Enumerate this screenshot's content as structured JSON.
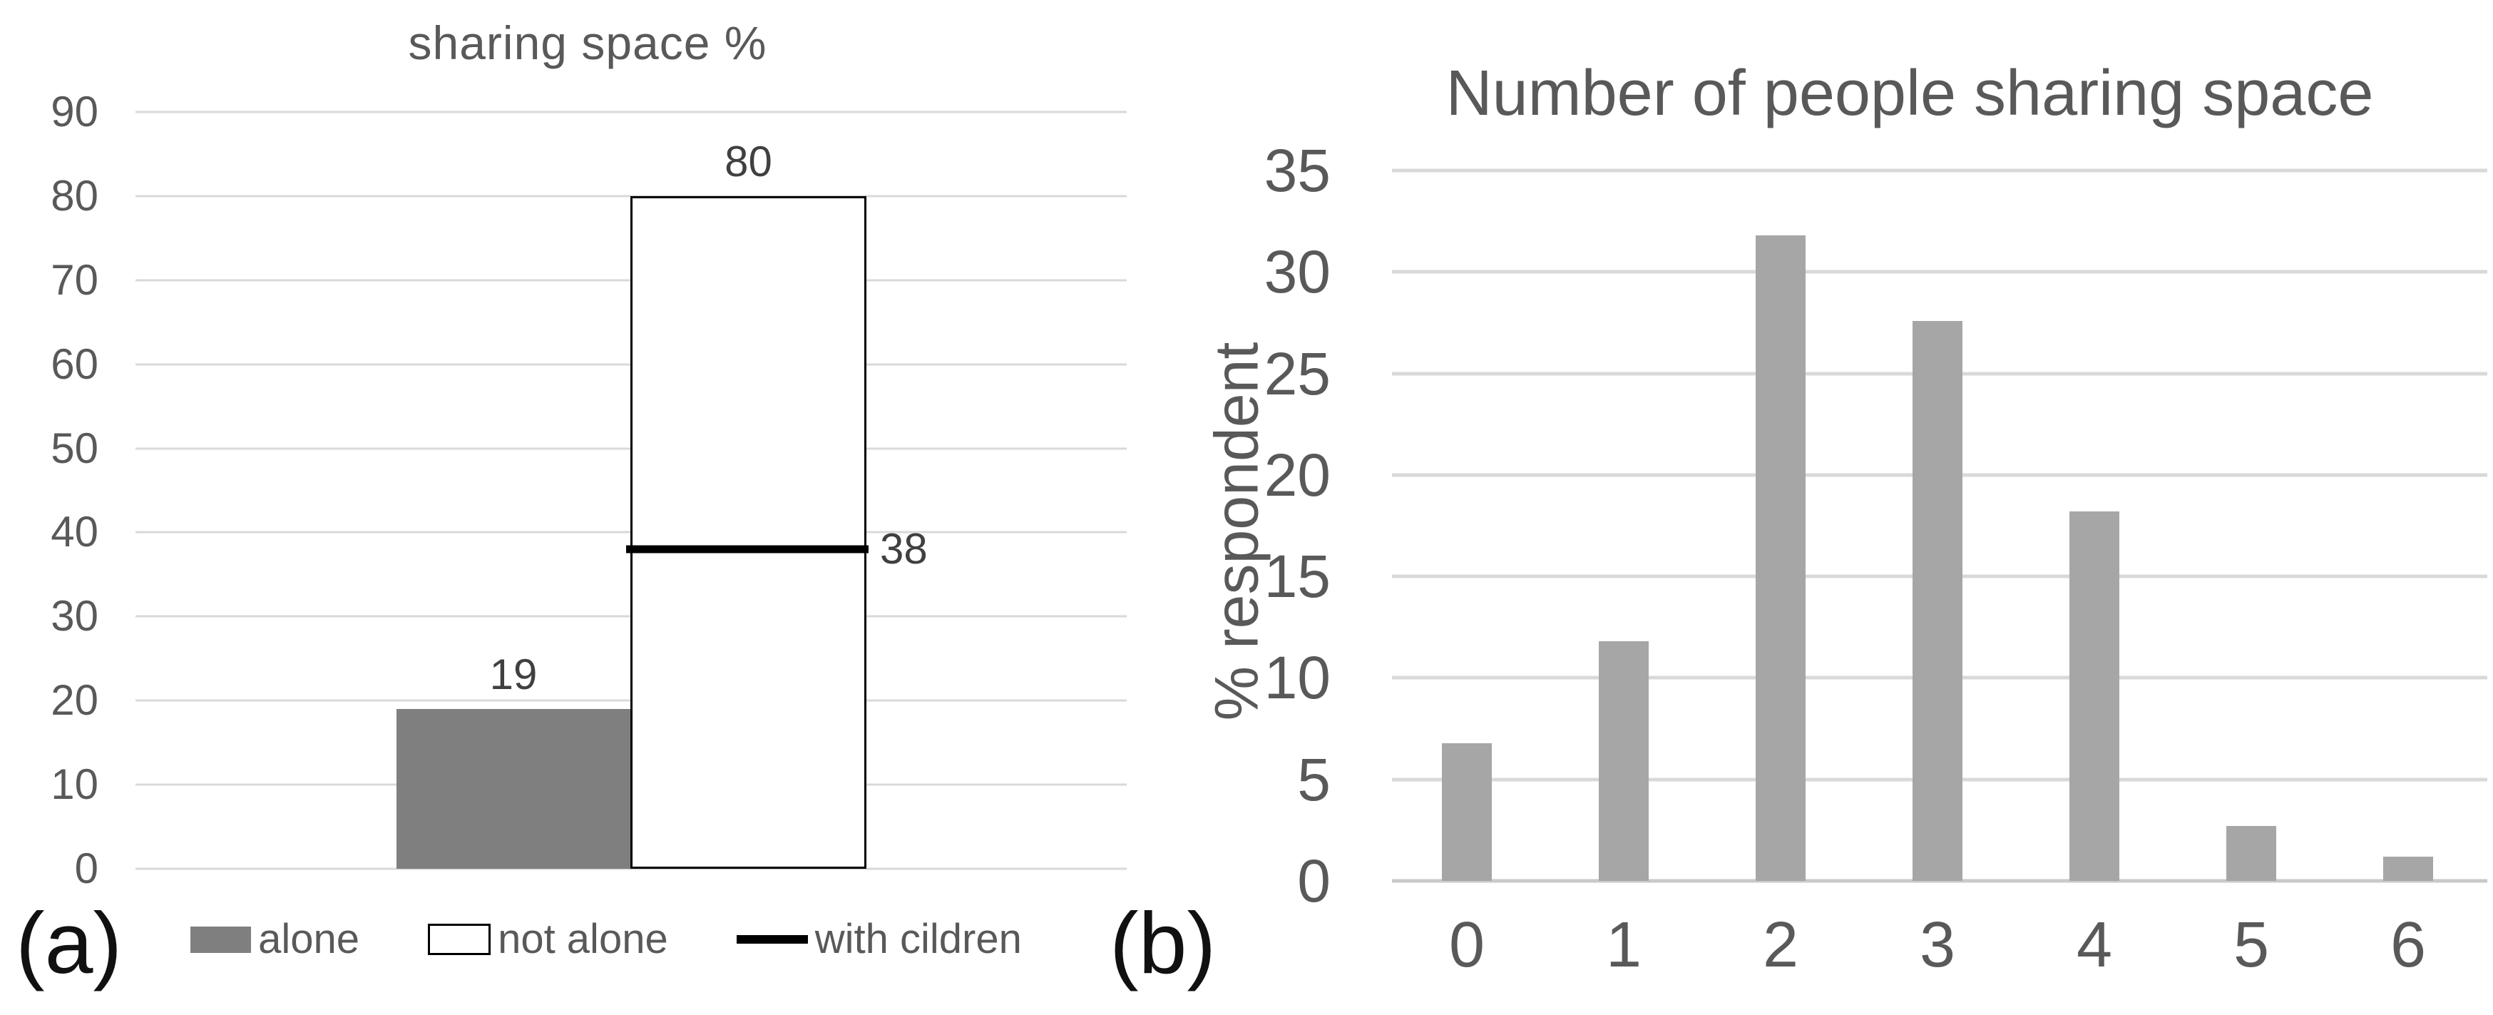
{
  "chart_data": [
    {
      "id": "a",
      "type": "bar",
      "title": "sharing space %",
      "panel_label": "(a)",
      "ylim": [
        0,
        90
      ],
      "yticks": [
        90,
        80,
        70,
        60,
        50,
        40,
        30,
        20,
        10,
        0
      ],
      "grid": true,
      "legend_position": "bottom",
      "series": [
        {
          "name": "alone",
          "mark": "bar",
          "value": 19,
          "data_label": "19"
        },
        {
          "name": "not alone",
          "mark": "bar",
          "value": 80,
          "data_label": "80"
        },
        {
          "name": "with cildren",
          "mark": "line",
          "value": 38,
          "data_label": "38"
        }
      ],
      "legend": [
        {
          "label": "alone",
          "swatch": "gray-fill"
        },
        {
          "label": "not alone",
          "swatch": "white-outline"
        },
        {
          "label": "with cildren",
          "swatch": "black-line"
        }
      ]
    },
    {
      "id": "b",
      "type": "bar",
      "title": "Number of people sharing space",
      "panel_label": "(b)",
      "ylabel": "% respondent",
      "ylim": [
        0,
        35
      ],
      "yticks": [
        35,
        30,
        25,
        20,
        15,
        10,
        5,
        0
      ],
      "grid": true,
      "categories": [
        "0",
        "1",
        "2",
        "3",
        "4",
        "5",
        "6"
      ],
      "values": [
        6.8,
        11.8,
        31.8,
        27.6,
        18.2,
        2.7,
        1.2
      ]
    }
  ],
  "colors": {
    "bar_alone": "#7f7f7f",
    "bar_not_alone_fill": "#ffffff",
    "bar_not_alone_outline": "#000000",
    "with_children_line": "#000000",
    "bar_panel_b": "#a6a6a6",
    "gridline": "#d9d9d9",
    "axis_text": "#595959",
    "data_label_text": "#404040",
    "panel_letter_text": "#111111"
  }
}
